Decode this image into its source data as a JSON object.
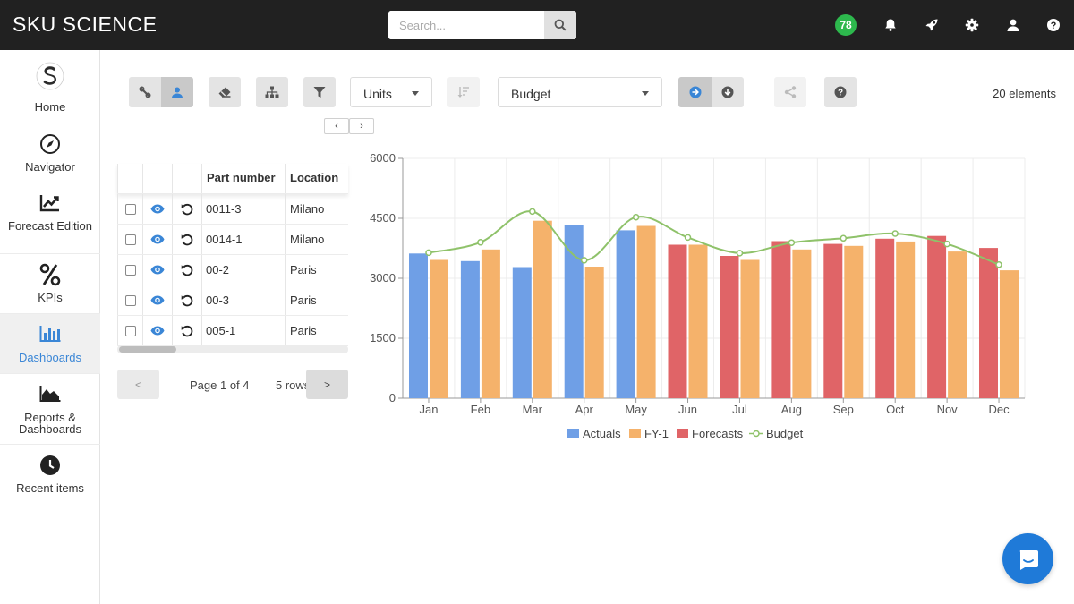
{
  "app": {
    "title": "SKU SCIENCE"
  },
  "search": {
    "placeholder": "Search..."
  },
  "header": {
    "notifications_count": "78"
  },
  "sidebar": {
    "items": [
      {
        "label": "Home",
        "icon": "logo-icon"
      },
      {
        "label": "Navigator",
        "icon": "compass-icon"
      },
      {
        "label": "Forecast Edition",
        "icon": "trend-chart-icon"
      },
      {
        "label": "KPIs",
        "icon": "percent-icon"
      },
      {
        "label": "Dashboards",
        "icon": "bar-chart-icon",
        "active": true
      },
      {
        "label": "Reports & Dashboards",
        "icon": "area-chart-icon"
      },
      {
        "label": "Recent items",
        "icon": "clock-icon"
      }
    ]
  },
  "toolbar": {
    "units_select": "Units",
    "budget_select": "Budget",
    "elements_count": "20 elements"
  },
  "table": {
    "columns": [
      "Part number",
      "Location"
    ],
    "rows": [
      {
        "part": "0011-3",
        "location": "Milano"
      },
      {
        "part": "0014-1",
        "location": "Milano"
      },
      {
        "part": "00-2",
        "location": "Paris"
      },
      {
        "part": "00-3",
        "location": "Paris"
      },
      {
        "part": "005-1",
        "location": "Paris"
      }
    ]
  },
  "pagination": {
    "prev": "<",
    "next": ">",
    "page_text": "Page 1 of 4",
    "rows_text": "5 rows"
  },
  "colors": {
    "actuals": "#6f9fe6",
    "fy1": "#f5b26b",
    "forecasts": "#e06467",
    "budget": "#8fc26a",
    "accent": "#3a86d6"
  },
  "chart_data": {
    "type": "bar",
    "categories": [
      "Jan",
      "Feb",
      "Mar",
      "Apr",
      "May",
      "Jun",
      "Jul",
      "Aug",
      "Sep",
      "Oct",
      "Nov",
      "Dec"
    ],
    "ylim": [
      0,
      6000
    ],
    "yticks": [
      0,
      1500,
      3000,
      4500,
      6000
    ],
    "series": [
      {
        "name": "Actuals",
        "type": "bar",
        "values": [
          3620,
          3430,
          3280,
          4340,
          4200,
          null,
          null,
          null,
          null,
          null,
          null,
          null
        ]
      },
      {
        "name": "FY-1",
        "type": "bar",
        "values": [
          3460,
          3720,
          4440,
          3290,
          4310,
          3840,
          3460,
          3720,
          3810,
          3920,
          3670,
          3200
        ]
      },
      {
        "name": "Forecasts",
        "type": "bar",
        "values": [
          null,
          null,
          null,
          null,
          null,
          3840,
          3560,
          3930,
          3860,
          3990,
          4060,
          3760
        ]
      },
      {
        "name": "Budget",
        "type": "line",
        "values": [
          3640,
          3900,
          4670,
          3450,
          4530,
          4020,
          3630,
          3890,
          4000,
          4120,
          3860,
          3340
        ]
      }
    ],
    "grid": true,
    "legend": "bottom"
  }
}
